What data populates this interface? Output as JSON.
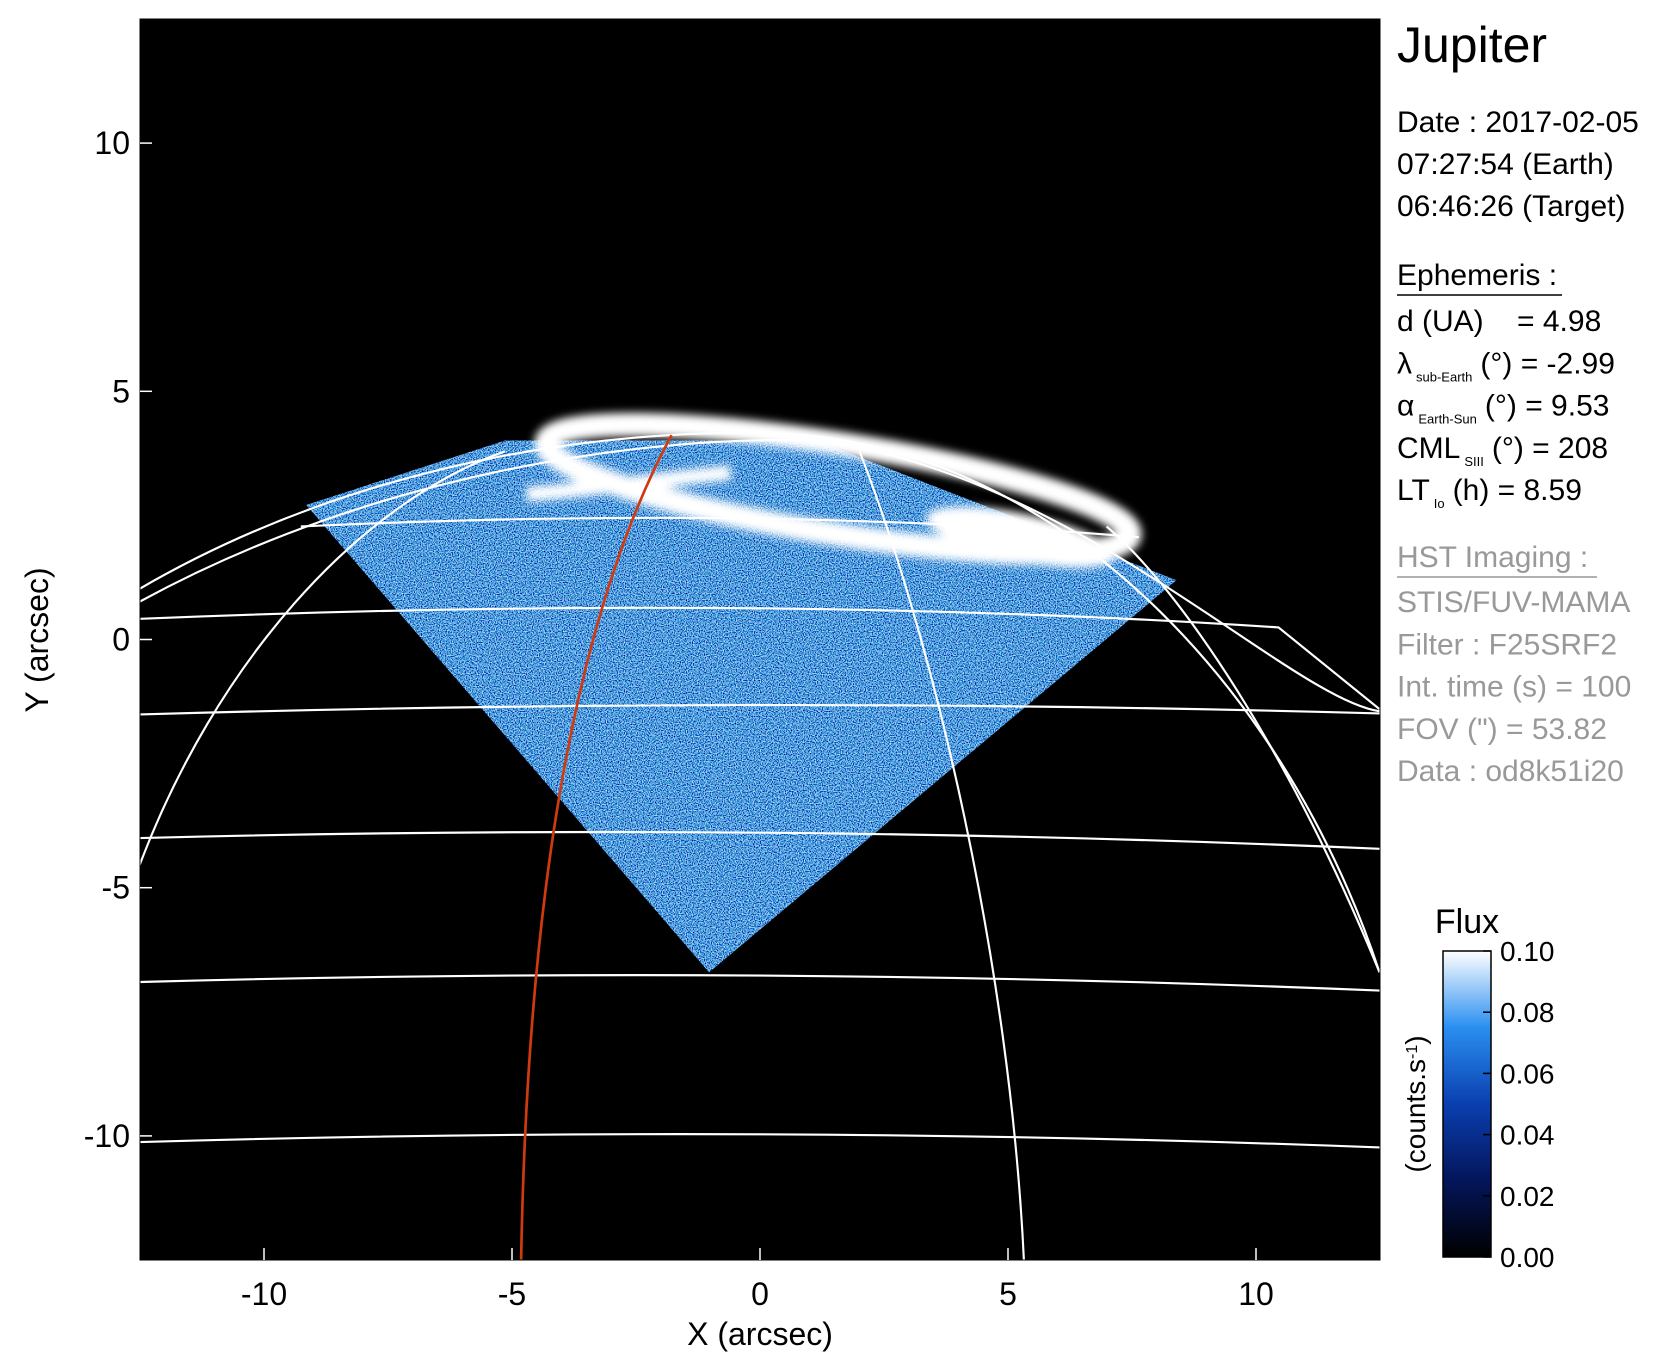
{
  "chart_data": {
    "type": "image",
    "xlabel": "X (arcsec)",
    "ylabel": "Y (arcsec)",
    "xlim": [
      -12.5,
      12.5
    ],
    "ylim": [
      -12.5,
      12.5
    ],
    "xticks": [
      -10,
      -5,
      0,
      5,
      10
    ],
    "yticks": [
      -10,
      -5,
      0,
      5,
      10
    ],
    "colorbar": {
      "title": "Flux",
      "label_parts": [
        "(counts.s",
        "-1",
        ")"
      ],
      "lim": [
        0,
        0.1
      ],
      "ticks": [
        {
          "value": 0,
          "label": "0.00"
        },
        {
          "value": 0.02,
          "label": "0.02"
        },
        {
          "value": 0.04,
          "label": "0.04"
        },
        {
          "value": 0.06,
          "label": "0.06"
        },
        {
          "value": 0.08,
          "label": "0.08"
        },
        {
          "value": 0.1,
          "label": "0.10"
        }
      ]
    }
  },
  "panel": {
    "title": "Jupiter",
    "date_lines": [
      "Date : 2017-02-05",
      "07:27:54 (Earth)",
      "06:46:26 (Target)"
    ],
    "ephemeris_heading": "Ephemeris :",
    "ephemeris": [
      {
        "text": "d (UA)    = 4.98"
      },
      {
        "symbol": "λ",
        "sub": "sub-Earth",
        "text": "(°) = -2.99"
      },
      {
        "symbol": "α",
        "sub": "Earth-Sun",
        "text": "(°) = 9.53"
      },
      {
        "symbol": "CML",
        "sub": "SIII",
        "text": "(°) = 208"
      },
      {
        "symbol": "LT",
        "sub": "Io",
        "text": "(h) = 8.59"
      }
    ],
    "imaging_heading": "HST Imaging :",
    "imaging": [
      "STIS/FUV-MAMA",
      "Filter : F25SRF2",
      "Int. time (s) = 100",
      "FOV (\") = 53.82",
      "Data : od8k51i20"
    ]
  }
}
